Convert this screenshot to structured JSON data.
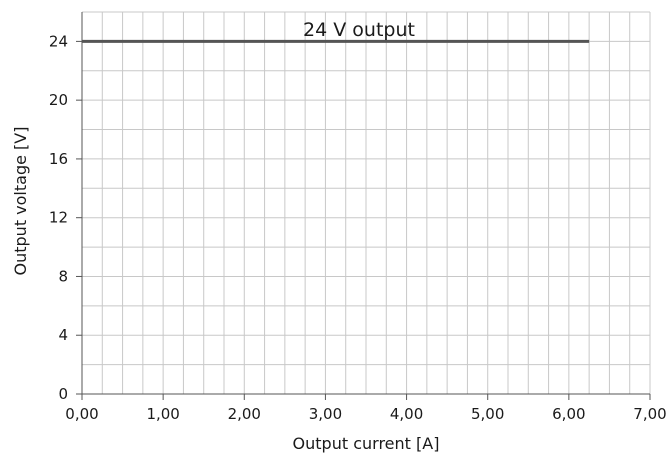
{
  "chart_data": {
    "type": "line",
    "title": "24 V output",
    "xlabel": "Output current [A]",
    "ylabel": "Output voltage [V]",
    "xlim": [
      0,
      7
    ],
    "ylim": [
      0,
      26
    ],
    "x_ticks": [
      0,
      1,
      2,
      3,
      4,
      5,
      6,
      7
    ],
    "x_tick_labels": [
      "0,00",
      "1,00",
      "2,00",
      "3,00",
      "4,00",
      "5,00",
      "6,00",
      "7,00"
    ],
    "y_ticks": [
      0,
      4,
      8,
      12,
      16,
      20,
      24
    ],
    "y_tick_labels": [
      "0",
      "4",
      "8",
      "12",
      "16",
      "20",
      "24"
    ],
    "x_minor_step": 0.25,
    "y_minor_step": 2,
    "grid": true,
    "legend": "none",
    "series": [
      {
        "x": [
          0,
          6.25
        ],
        "y": [
          24,
          24
        ],
        "color": "#555555"
      }
    ]
  }
}
